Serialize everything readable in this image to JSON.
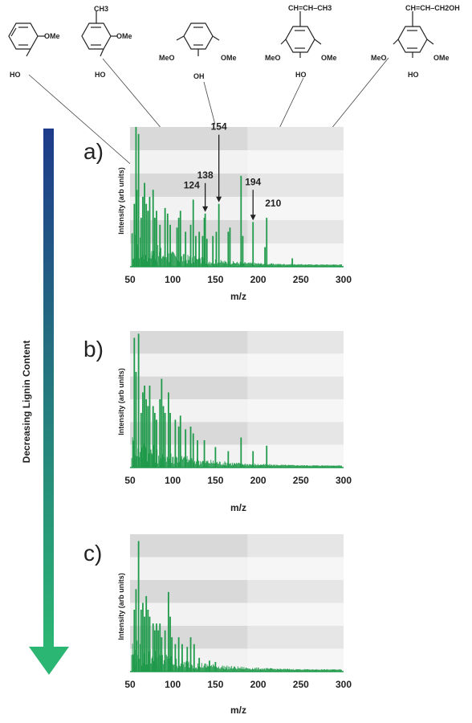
{
  "structures": [
    {
      "left_labels": [
        "",
        "HO"
      ],
      "right_label": "OMe",
      "top_label": ""
    },
    {
      "left_labels": [
        "",
        "HO"
      ],
      "right_label": "OMe",
      "top_label": "CH3"
    },
    {
      "left_labels": [
        "MeO",
        "OH"
      ],
      "right_label": "OMe",
      "top_label": ""
    },
    {
      "left_labels": [
        "MeO",
        "HO"
      ],
      "right_label": "OMe",
      "top_label": "CH=CH–CH3"
    },
    {
      "left_labels": [
        "MeO",
        "HO"
      ],
      "right_label": "OMe",
      "top_label": "CH=CH–CH2OH"
    }
  ],
  "arrow_label": "Decreasing Lignin Content",
  "colors": {
    "spectrum": "#1f9a4a",
    "arrow_top": "#1e3a8a",
    "arrow_bottom": "#2bb673"
  },
  "chart_data": [
    {
      "type": "bar",
      "panel_label": "a)",
      "xlabel": "m/z",
      "ylabel": "Intensity (arb units)",
      "xlim": [
        50,
        300
      ],
      "ylim": [
        0,
        1
      ],
      "xticks": [
        50,
        100,
        150,
        200,
        250,
        300
      ],
      "grid": "horizontal alternating bands",
      "annotations": [
        {
          "label": "124",
          "x": 124
        },
        {
          "label": "138",
          "x": 138
        },
        {
          "label": "154",
          "x": 154
        },
        {
          "label": "194",
          "x": 194
        },
        {
          "label": "210",
          "x": 210
        }
      ],
      "peaks": [
        {
          "x": 55,
          "y": 0.45
        },
        {
          "x": 57,
          "y": 1.0
        },
        {
          "x": 58,
          "y": 0.55
        },
        {
          "x": 60,
          "y": 0.95
        },
        {
          "x": 63,
          "y": 0.35
        },
        {
          "x": 65,
          "y": 0.5
        },
        {
          "x": 67,
          "y": 0.6
        },
        {
          "x": 69,
          "y": 0.45
        },
        {
          "x": 71,
          "y": 0.4
        },
        {
          "x": 73,
          "y": 0.5
        },
        {
          "x": 77,
          "y": 0.55
        },
        {
          "x": 79,
          "y": 0.35
        },
        {
          "x": 81,
          "y": 0.4
        },
        {
          "x": 85,
          "y": 0.3
        },
        {
          "x": 91,
          "y": 0.42
        },
        {
          "x": 94,
          "y": 0.38
        },
        {
          "x": 97,
          "y": 0.3
        },
        {
          "x": 105,
          "y": 0.28
        },
        {
          "x": 107,
          "y": 0.35
        },
        {
          "x": 109,
          "y": 0.4
        },
        {
          "x": 115,
          "y": 0.25
        },
        {
          "x": 121,
          "y": 0.3
        },
        {
          "x": 124,
          "y": 0.48
        },
        {
          "x": 127,
          "y": 0.22
        },
        {
          "x": 131,
          "y": 0.25
        },
        {
          "x": 135,
          "y": 0.22
        },
        {
          "x": 137,
          "y": 0.35
        },
        {
          "x": 138,
          "y": 0.38
        },
        {
          "x": 140,
          "y": 0.2
        },
        {
          "x": 147,
          "y": 0.22
        },
        {
          "x": 151,
          "y": 0.25
        },
        {
          "x": 154,
          "y": 0.45
        },
        {
          "x": 165,
          "y": 0.25
        },
        {
          "x": 167,
          "y": 0.28
        },
        {
          "x": 180,
          "y": 0.65
        },
        {
          "x": 182,
          "y": 0.22
        },
        {
          "x": 194,
          "y": 0.32
        },
        {
          "x": 208,
          "y": 0.14
        },
        {
          "x": 210,
          "y": 0.35
        },
        {
          "x": 240,
          "y": 0.06
        }
      ]
    },
    {
      "type": "bar",
      "panel_label": "b)",
      "xlabel": "m/z",
      "ylabel": "Intensity (arb units)",
      "xlim": [
        50,
        300
      ],
      "ylim": [
        0,
        1
      ],
      "xticks": [
        50,
        100,
        150,
        200,
        250,
        300
      ],
      "grid": "horizontal alternating bands",
      "peaks": [
        {
          "x": 55,
          "y": 0.95
        },
        {
          "x": 57,
          "y": 0.7
        },
        {
          "x": 60,
          "y": 0.98
        },
        {
          "x": 63,
          "y": 0.4
        },
        {
          "x": 65,
          "y": 0.55
        },
        {
          "x": 67,
          "y": 0.6
        },
        {
          "x": 69,
          "y": 0.5
        },
        {
          "x": 71,
          "y": 0.45
        },
        {
          "x": 73,
          "y": 0.6
        },
        {
          "x": 77,
          "y": 0.45
        },
        {
          "x": 79,
          "y": 0.4
        },
        {
          "x": 81,
          "y": 0.35
        },
        {
          "x": 85,
          "y": 0.5
        },
        {
          "x": 87,
          "y": 0.65
        },
        {
          "x": 89,
          "y": 0.45
        },
        {
          "x": 91,
          "y": 0.4
        },
        {
          "x": 95,
          "y": 0.55
        },
        {
          "x": 97,
          "y": 0.4
        },
        {
          "x": 103,
          "y": 0.35
        },
        {
          "x": 107,
          "y": 0.3
        },
        {
          "x": 109,
          "y": 0.38
        },
        {
          "x": 115,
          "y": 0.28
        },
        {
          "x": 121,
          "y": 0.3
        },
        {
          "x": 124,
          "y": 0.25
        },
        {
          "x": 129,
          "y": 0.2
        },
        {
          "x": 137,
          "y": 0.2
        },
        {
          "x": 150,
          "y": 0.15
        },
        {
          "x": 165,
          "y": 0.12
        },
        {
          "x": 180,
          "y": 0.22
        },
        {
          "x": 194,
          "y": 0.12
        },
        {
          "x": 210,
          "y": 0.16
        }
      ]
    },
    {
      "type": "bar",
      "panel_label": "c)",
      "xlabel": "m/z",
      "ylabel": "Intensity (arb units)",
      "xlim": [
        50,
        300
      ],
      "ylim": [
        0,
        1
      ],
      "xticks": [
        50,
        100,
        150,
        200,
        250,
        300
      ],
      "grid": "horizontal alternating bands",
      "peaks": [
        {
          "x": 55,
          "y": 0.45
        },
        {
          "x": 57,
          "y": 0.6
        },
        {
          "x": 60,
          "y": 0.95
        },
        {
          "x": 63,
          "y": 0.45
        },
        {
          "x": 65,
          "y": 0.5
        },
        {
          "x": 67,
          "y": 0.4
        },
        {
          "x": 69,
          "y": 0.55
        },
        {
          "x": 71,
          "y": 0.45
        },
        {
          "x": 73,
          "y": 0.4
        },
        {
          "x": 77,
          "y": 0.35
        },
        {
          "x": 79,
          "y": 0.3
        },
        {
          "x": 81,
          "y": 0.35
        },
        {
          "x": 83,
          "y": 0.3
        },
        {
          "x": 85,
          "y": 0.35
        },
        {
          "x": 87,
          "y": 0.25
        },
        {
          "x": 91,
          "y": 0.3
        },
        {
          "x": 95,
          "y": 0.58
        },
        {
          "x": 97,
          "y": 0.4
        },
        {
          "x": 99,
          "y": 0.25
        },
        {
          "x": 103,
          "y": 0.2
        },
        {
          "x": 107,
          "y": 0.25
        },
        {
          "x": 111,
          "y": 0.2
        },
        {
          "x": 117,
          "y": 0.18
        },
        {
          "x": 121,
          "y": 0.25
        },
        {
          "x": 125,
          "y": 0.2
        },
        {
          "x": 131,
          "y": 0.1
        },
        {
          "x": 143,
          "y": 0.08
        },
        {
          "x": 150,
          "y": 0.07
        }
      ]
    }
  ]
}
